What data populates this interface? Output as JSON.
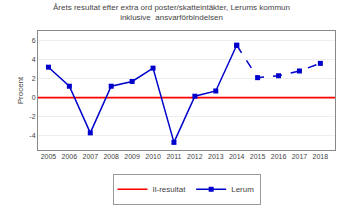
{
  "chart_data": {
    "type": "line",
    "title": "Årets resultat efter extra ord poster/skatteintäkter, Lerums kommun\ninklusive  ansvarförbindelsen",
    "y_label": "Procent",
    "series": [
      {
        "name": "Il-resultat",
        "type": "hline",
        "color": "#FF0000",
        "line_style": "solid",
        "values": [
          0.0
        ]
      },
      {
        "name": "Lerum",
        "type": "line",
        "color": "#0000CC",
        "marker": "square",
        "line_style": "solid",
        "x": [
          2005,
          2006,
          2007,
          2008,
          2009,
          2010,
          2011,
          2012,
          2013,
          2014
        ],
        "values": [
          3.2,
          1.2,
          -3.7,
          1.2,
          1.7,
          3.1,
          -4.7,
          0.15,
          0.7,
          5.5
        ]
      },
      {
        "name": "Lerum",
        "type": "line",
        "color": "#0000CC",
        "marker": "square",
        "line_style": "dashed",
        "x": [
          2014,
          2015,
          2016,
          2017,
          2018
        ],
        "values": [
          5.5,
          2.1,
          2.3,
          2.8,
          3.6
        ]
      }
    ],
    "xlim": [
      2004.5,
      2018.7
    ],
    "xticks": [
      2005,
      2006,
      2007,
      2008,
      2009,
      2010,
      2011,
      2012,
      2013,
      2014,
      2015,
      2016,
      2017,
      2018
    ],
    "ylim": [
      -5.5,
      7.0
    ],
    "yticks": [
      -4,
      -2,
      0,
      2,
      4,
      6
    ],
    "grid": "y",
    "legend": "bottom"
  }
}
